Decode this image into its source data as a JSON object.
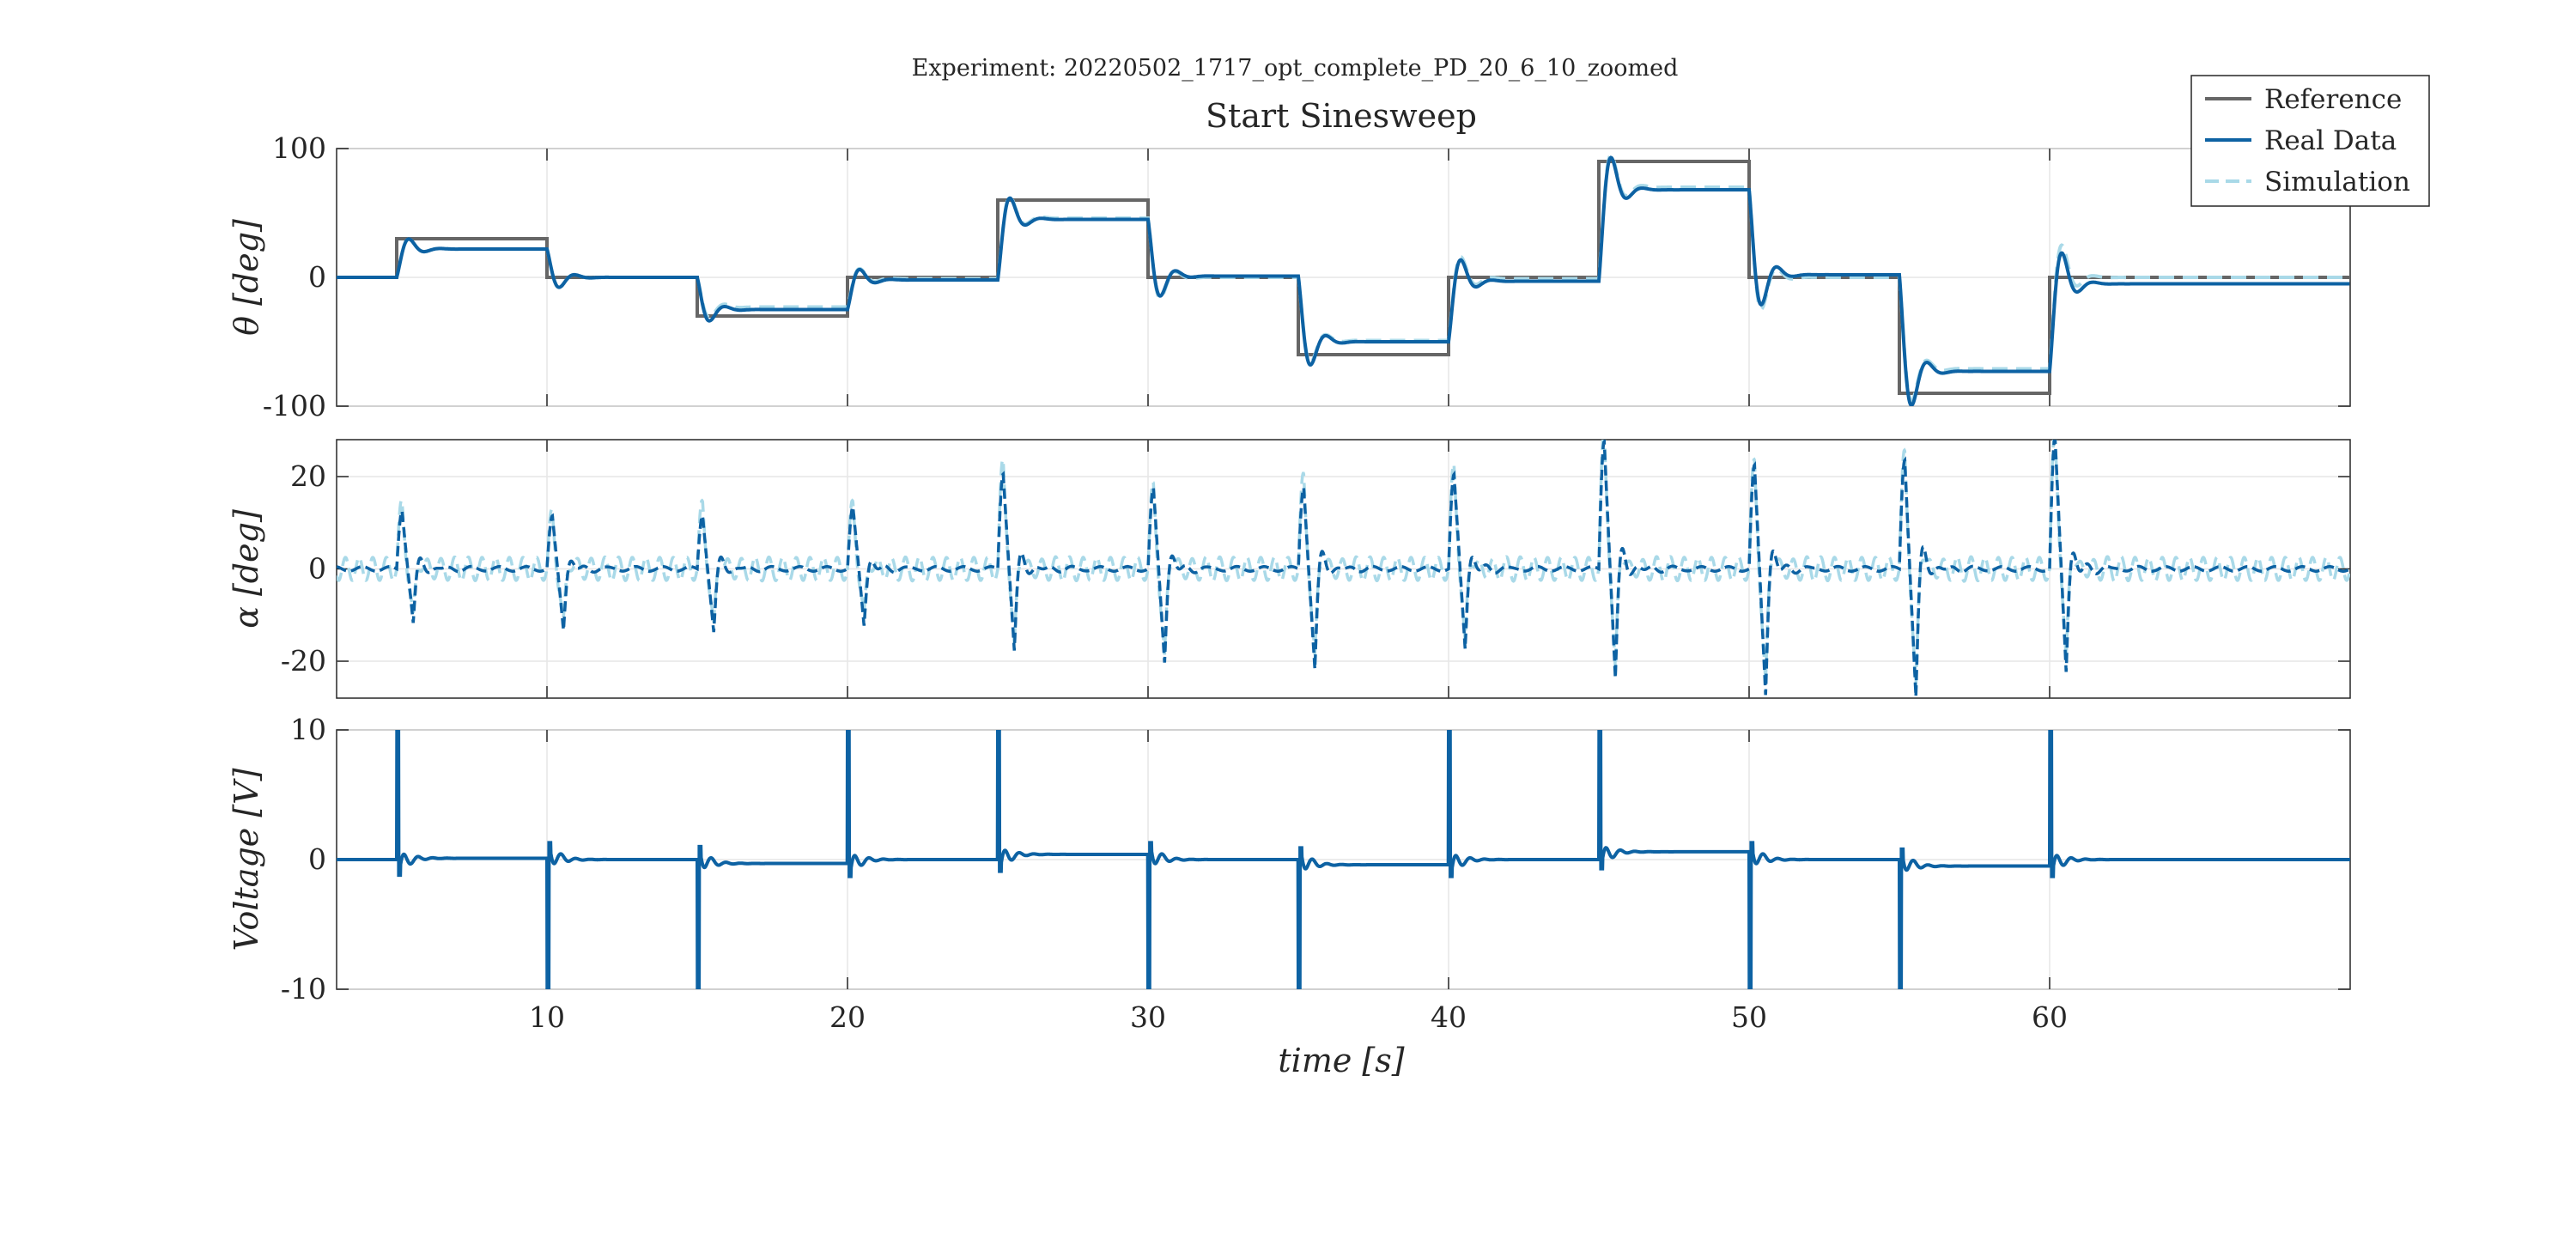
{
  "chart_data": {
    "type": "line",
    "suptitle": "Experiment: 20220502_1717_opt_complete_PD_20_6_10_zoomed",
    "title": "Start Sinesweep",
    "xlabel": "time [s]",
    "xlim": [
      3,
      70
    ],
    "xticks": [
      10,
      20,
      30,
      40,
      50,
      60
    ],
    "grid": true,
    "legend": {
      "position": "top-right",
      "entries": [
        {
          "name": "Reference",
          "color": "#666666",
          "style": "solid"
        },
        {
          "name": "Real Data",
          "color": "#0d62a3",
          "style": "solid"
        },
        {
          "name": "Simulation",
          "color": "#a9d9e8",
          "style": "dashed"
        }
      ]
    },
    "step_times": [
      5,
      10,
      15,
      20,
      25,
      30,
      35,
      40,
      45,
      50,
      55,
      60
    ],
    "subplots": [
      {
        "id": "theta",
        "ylabel": "θ [deg]",
        "ylim": [
          -100,
          100
        ],
        "yticks": [
          100,
          0,
          -100
        ],
        "ytick_labels": [
          "100",
          "0",
          "-100"
        ],
        "series": [
          {
            "name": "Reference",
            "steps": [
              [
                3,
                0
              ],
              [
                5,
                30
              ],
              [
                10,
                0
              ],
              [
                15,
                -30
              ],
              [
                20,
                0
              ],
              [
                25,
                60
              ],
              [
                30,
                0
              ],
              [
                35,
                -60
              ],
              [
                40,
                0
              ],
              [
                45,
                90
              ],
              [
                50,
                0
              ],
              [
                55,
                -90
              ],
              [
                60,
                0
              ],
              [
                70,
                0
              ]
            ]
          },
          {
            "name": "Real Data",
            "steps": [
              [
                3,
                0
              ],
              [
                5,
                22
              ],
              [
                10,
                0
              ],
              [
                15,
                -25
              ],
              [
                20,
                -2
              ],
              [
                25,
                45
              ],
              [
                30,
                1
              ],
              [
                35,
                -50
              ],
              [
                40,
                -3
              ],
              [
                45,
                68
              ],
              [
                50,
                2
              ],
              [
                55,
                -73
              ],
              [
                60,
                -5
              ],
              [
                70,
                -5
              ]
            ]
          },
          {
            "name": "Simulation",
            "steps": [
              [
                3,
                0
              ],
              [
                5,
                22
              ],
              [
                10,
                0
              ],
              [
                15,
                -23
              ],
              [
                20,
                -1
              ],
              [
                25,
                46
              ],
              [
                30,
                0
              ],
              [
                35,
                -49
              ],
              [
                40,
                -1
              ],
              [
                45,
                70
              ],
              [
                50,
                0
              ],
              [
                55,
                -71
              ],
              [
                60,
                0
              ],
              [
                70,
                0
              ]
            ]
          }
        ]
      },
      {
        "id": "alpha",
        "ylabel": "α [deg]",
        "ylim": [
          -28,
          28
        ],
        "yticks": [
          20,
          0,
          -20
        ],
        "ytick_labels": [
          "20",
          "0",
          "-20"
        ],
        "series": [
          {
            "name": "Real Data",
            "spikes": [
              [
                5,
                13,
                -12
              ],
              [
                10,
                11,
                -13
              ],
              [
                15,
                12,
                -14
              ],
              [
                20,
                13,
                -12
              ],
              [
                25,
                21,
                -18
              ],
              [
                30,
                17,
                -20
              ],
              [
                35,
                18,
                -22
              ],
              [
                40,
                20,
                -17
              ],
              [
                45,
                28,
                -24
              ],
              [
                50,
                22,
                -27
              ],
              [
                55,
                24,
                -28
              ],
              [
                60,
                28,
                -22
              ]
            ]
          },
          {
            "name": "Simulation",
            "spikes": [
              [
                5,
                13,
                -12
              ],
              [
                10,
                11,
                -13
              ],
              [
                15,
                13,
                -14
              ],
              [
                20,
                13,
                -12
              ],
              [
                25,
                22,
                -19
              ],
              [
                30,
                17,
                -21
              ],
              [
                35,
                19,
                -21
              ],
              [
                40,
                21,
                -18
              ],
              [
                45,
                28,
                -24
              ],
              [
                50,
                22,
                -27
              ],
              [
                55,
                24,
                -28
              ],
              [
                60,
                28,
                -22
              ]
            ],
            "oscillation_amplitude": 2.5
          }
        ]
      },
      {
        "id": "voltage",
        "ylabel": "Voltage [V]",
        "ylim": [
          -10,
          10
        ],
        "yticks": [
          10,
          0,
          -10
        ],
        "ytick_labels": [
          "10",
          "0",
          "-10"
        ],
        "series": [
          {
            "name": "Real Data",
            "steps": [
              [
                3,
                0
              ],
              [
                5,
                0.1
              ],
              [
                10,
                0
              ],
              [
                15,
                -0.3
              ],
              [
                20,
                0
              ],
              [
                25,
                0.4
              ],
              [
                30,
                0
              ],
              [
                35,
                -0.4
              ],
              [
                40,
                0
              ],
              [
                45,
                0.6
              ],
              [
                50,
                0
              ],
              [
                55,
                -0.5
              ],
              [
                60,
                0
              ],
              [
                70,
                0
              ]
            ],
            "spike_sign": [
              1,
              -1,
              -1,
              1,
              1,
              -1,
              -1,
              1,
              1,
              -1,
              -1,
              1
            ]
          }
        ]
      }
    ]
  }
}
